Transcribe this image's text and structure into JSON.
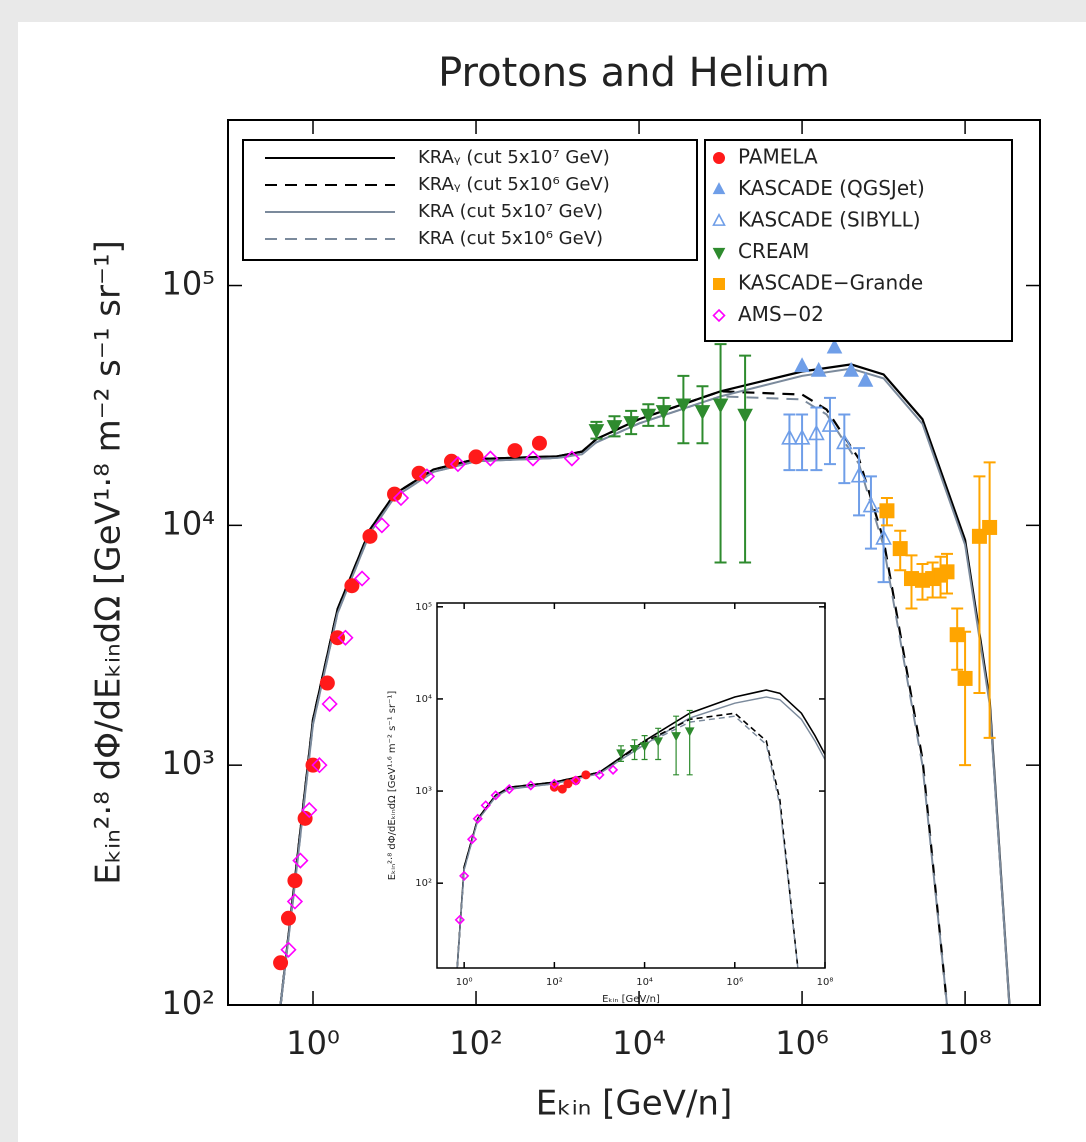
{
  "chart_data": [
    {
      "type": "line",
      "title": "Protons and Helium",
      "x_label": "Eₖᵢₙ [GeV/n]",
      "y_label": "Eₖᵢₙ²·⁸ dΦ/dEₖᵢₙdΩ [GeV¹·⁸ m⁻² s⁻¹ sr⁻¹]",
      "xscale": "log",
      "yscale": "log",
      "xlim": [
        0.0906,
        830000000
      ],
      "ylim": [
        100,
        490000
      ],
      "xticks": [
        {
          "value": 1,
          "label": "10⁰"
        },
        {
          "value": 100,
          "label": "10²"
        },
        {
          "value": 10000,
          "label": "10⁴"
        },
        {
          "value": 1000000,
          "label": "10⁶"
        },
        {
          "value": 100000000,
          "label": "10⁸"
        }
      ],
      "yticks": [
        {
          "value": 100,
          "label": "10²"
        },
        {
          "value": 1000,
          "label": "10³"
        },
        {
          "value": 10000,
          "label": "10⁴"
        },
        {
          "value": 100000,
          "label": "10⁵"
        }
      ],
      "legend_lines": "upper left",
      "legend_markers": "upper right",
      "series": [
        {
          "name": "KRAᵧ (cut 5x10⁷ GeV)",
          "type": "line",
          "color": "#000000",
          "dash": "solid",
          "x": [
            0.4,
            0.6,
            1,
            2,
            5,
            10,
            30,
            100,
            1000,
            2000,
            3000,
            10000,
            100000,
            1000000,
            4000000,
            10000000,
            30000000,
            100000000,
            200000000,
            350000000
          ],
          "values": [
            100,
            335,
            1550,
            4470,
            9600,
            13500,
            17100,
            18900,
            19400,
            20300,
            22900,
            27700,
            36200,
            43800,
            46900,
            42600,
            27700,
            8700,
            1880,
            100
          ]
        },
        {
          "name": "KRAᵧ (cut 5x10⁶ GeV)",
          "type": "line",
          "color": "#000000",
          "dash": "dashed",
          "x": [
            0.4,
            0.6,
            1,
            2,
            5,
            10,
            30,
            100,
            1000,
            2000,
            3000,
            10000,
            100000,
            1000000,
            2000000,
            5000000,
            10000000,
            30000000,
            60000000
          ],
          "values": [
            100,
            335,
            1550,
            4470,
            9600,
            13500,
            17100,
            18900,
            19400,
            20300,
            22900,
            27700,
            36200,
            35100,
            30400,
            18900,
            8700,
            1060,
            100
          ]
        },
        {
          "name": "KRA (cut 5x10⁷ GeV)",
          "type": "line",
          "color": "#7b8a9c",
          "dash": "solid",
          "x": [
            0.4,
            0.6,
            1,
            2,
            5,
            10,
            30,
            100,
            1000,
            2000,
            3000,
            10000,
            100000,
            1000000,
            4000000,
            10000000,
            30000000,
            100000000,
            200000000,
            350000000
          ],
          "values": [
            100,
            320,
            1480,
            4300,
            9300,
            13100,
            16700,
            18500,
            19100,
            19800,
            22200,
            26600,
            34500,
            42000,
            45000,
            41000,
            26500,
            8300,
            1800,
            100
          ]
        },
        {
          "name": "KRA (cut 5x10⁶ GeV)",
          "type": "line",
          "color": "#7b8a9c",
          "dash": "dashed",
          "x": [
            0.4,
            0.6,
            1,
            2,
            5,
            10,
            30,
            100,
            1000,
            2000,
            3000,
            10000,
            100000,
            1000000,
            2000000,
            5000000,
            10000000,
            30000000,
            60000000
          ],
          "values": [
            100,
            320,
            1480,
            4300,
            9300,
            13100,
            16700,
            18500,
            19100,
            19800,
            22200,
            26600,
            34500,
            33500,
            29000,
            18000,
            8200,
            1000,
            100
          ]
        },
        {
          "name": "PAMELA",
          "type": "scatter",
          "marker": "circle",
          "filled": true,
          "color": "#ff1a1a",
          "x": [
            0.4,
            0.5,
            0.6,
            0.8,
            1,
            1.5,
            2,
            3,
            5,
            10,
            20,
            50,
            100,
            300,
            600
          ],
          "values": [
            150,
            230,
            330,
            600,
            1000,
            2200,
            3400,
            5600,
            9000,
            13500,
            16500,
            18500,
            19300,
            20500,
            22000
          ]
        },
        {
          "name": "KASCADE (QGSJet)",
          "type": "scatter",
          "marker": "triangle-up",
          "filled": true,
          "color": "#6f9ee8",
          "x": [
            1000000,
            1600000,
            2500000,
            4000000,
            6000000
          ],
          "values": [
            46000,
            44000,
            55000,
            44000,
            40000
          ]
        },
        {
          "name": "KASCADE (SIBYLL)",
          "type": "scatter",
          "marker": "triangle-up",
          "filled": false,
          "color": "#6f9ee8",
          "x": [
            700000,
            1000000,
            1500000,
            2200000,
            3300000,
            5000000,
            7000000,
            10000000
          ],
          "values": [
            23000,
            23000,
            24000,
            26000,
            22000,
            16000,
            12000,
            8800
          ],
          "errors": [
            6000,
            6000,
            7000,
            8000,
            7000,
            5000,
            4000,
            3000
          ]
        },
        {
          "name": "CREAM",
          "type": "scatter",
          "marker": "triangle-down",
          "filled": true,
          "color": "#2e8b2e",
          "x": [
            3000,
            5000,
            8000,
            13000,
            20000,
            35000,
            60000,
            100000,
            200000
          ],
          "values": [
            25000,
            26000,
            27000,
            29000,
            30000,
            32000,
            30000,
            32000,
            29000
          ],
          "errors": [
            2000,
            2500,
            3000,
            3000,
            4000,
            10000,
            8000,
            25000,
            22000
          ]
        },
        {
          "name": "KASCADE−Grande",
          "type": "scatter",
          "marker": "square",
          "filled": true,
          "color": "#ffa500",
          "x": [
            11000000,
            16000000,
            22000000,
            30000000,
            40000000,
            50000000,
            60000000,
            80000000,
            100000000,
            150000000,
            200000000
          ],
          "values": [
            11500,
            8000,
            6000,
            5900,
            6000,
            6200,
            6400,
            3500,
            2300,
            9000,
            9800
          ],
          "errors": [
            1500,
            1500,
            1500,
            1000,
            1000,
            1200,
            1200,
            1000,
            1300,
            7000,
            8500
          ]
        },
        {
          "name": "AMS−02",
          "type": "scatter",
          "marker": "diamond",
          "filled": false,
          "color": "#ff00ff",
          "x": [
            0.5,
            0.6,
            0.7,
            0.9,
            1.2,
            1.6,
            2.5,
            4,
            7,
            12,
            25,
            60,
            150,
            500,
            1500
          ],
          "values": [
            170,
            270,
            400,
            650,
            1000,
            1800,
            3400,
            6000,
            10000,
            13000,
            16000,
            18000,
            19000,
            19000,
            19000
          ]
        }
      ]
    },
    {
      "type": "line",
      "x_label": "Eₖᵢₙ [GeV/n]",
      "y_label": "Eₖᵢₙ²·⁸ dΦ/dEₖᵢₙdΩ [GeV¹·⁶ m⁻² s⁻¹ sr⁻¹]",
      "xscale": "log",
      "yscale": "log",
      "xlim": [
        0.25,
        100000000
      ],
      "ylim": [
        12,
        110000
      ],
      "xticks": [
        {
          "value": 1,
          "label": "10⁰"
        },
        {
          "value": 100,
          "label": "10²"
        },
        {
          "value": 10000,
          "label": "10⁴"
        },
        {
          "value": 1000000,
          "label": "10⁶"
        },
        {
          "value": 100000000,
          "label": "10⁸"
        }
      ],
      "yticks": [
        {
          "value": 100,
          "label": "10²"
        },
        {
          "value": 1000,
          "label": "10³"
        },
        {
          "value": 10000,
          "label": "10⁴"
        },
        {
          "value": 100000,
          "label": "10⁵"
        }
      ],
      "series": [
        {
          "type": "line",
          "color": "#000000",
          "dash": "solid",
          "x": [
            0.7,
            1,
            2,
            5,
            10,
            100,
            1000,
            10000,
            100000,
            1000000,
            5000000,
            10000000,
            30000000,
            60000000,
            100000000
          ],
          "values": [
            12,
            150,
            500,
            900,
            1100,
            1250,
            1600,
            3500,
            7000,
            10500,
            12500,
            11500,
            7000,
            4000,
            2500
          ]
        },
        {
          "type": "line",
          "color": "#7b8a9c",
          "dash": "solid",
          "x": [
            0.7,
            1,
            2,
            5,
            10,
            100,
            1000,
            10000,
            100000,
            1000000,
            5000000,
            10000000,
            30000000,
            60000000,
            100000000
          ],
          "values": [
            12,
            140,
            480,
            870,
            1050,
            1200,
            1550,
            3200,
            6200,
            9000,
            10500,
            9800,
            6000,
            3500,
            2200
          ]
        },
        {
          "type": "line",
          "color": "#000000",
          "dash": "dashed",
          "x": [
            0.7,
            1,
            2,
            5,
            10,
            100,
            1000,
            10000,
            100000,
            1000000,
            5000000,
            10000000,
            25000000
          ],
          "values": [
            12,
            150,
            500,
            900,
            1100,
            1250,
            1600,
            3400,
            6000,
            7000,
            3500,
            800,
            12
          ]
        },
        {
          "type": "line",
          "color": "#7b8a9c",
          "dash": "dashed",
          "x": [
            0.7,
            1,
            2,
            5,
            10,
            100,
            1000,
            10000,
            100000,
            1000000,
            5000000,
            10000000,
            25000000
          ],
          "values": [
            12,
            140,
            480,
            870,
            1050,
            1200,
            1550,
            3200,
            5600,
            6500,
            3200,
            700,
            12
          ]
        },
        {
          "type": "scatter",
          "marker": "circle",
          "filled": true,
          "color": "#ff1a1a",
          "x": [
            100,
            150,
            200,
            300,
            500
          ],
          "values": [
            1100,
            1050,
            1200,
            1300,
            1500
          ]
        },
        {
          "type": "scatter",
          "marker": "diamond",
          "filled": false,
          "color": "#ff00ff",
          "x": [
            0.8,
            1,
            1.5,
            2,
            3,
            5,
            10,
            30,
            100,
            300,
            1000,
            2000
          ],
          "values": [
            40,
            120,
            300,
            500,
            700,
            900,
            1050,
            1150,
            1200,
            1300,
            1500,
            1700
          ]
        },
        {
          "type": "scatter",
          "marker": "triangle-down",
          "filled": true,
          "color": "#2e8b2e",
          "x": [
            3000,
            6000,
            10000,
            20000,
            50000,
            100000
          ],
          "values": [
            2600,
            2900,
            3100,
            3500,
            4000,
            4500
          ],
          "errors": [
            500,
            700,
            900,
            1300,
            2500,
            3000
          ]
        }
      ]
    }
  ]
}
